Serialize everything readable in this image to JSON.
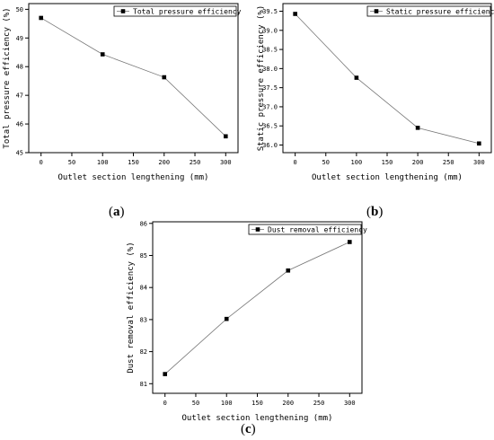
{
  "chart_data": [
    {
      "panel_label": "a",
      "type": "line",
      "x": [
        0,
        100,
        200,
        300
      ],
      "series": [
        {
          "name": "Total pressure efficiency",
          "values": [
            49.7,
            48.43,
            47.63,
            45.57
          ]
        }
      ],
      "xlabel": "Outlet section lengthening (mm)",
      "ylabel": "Total pressure efficiency (%)",
      "xlim": [
        -20,
        320
      ],
      "ylim": [
        45,
        50.2
      ],
      "xticks": [
        0,
        50,
        100,
        150,
        200,
        250,
        300
      ],
      "yticks": [
        45,
        46,
        47,
        48,
        49,
        50
      ],
      "grid": false,
      "legend_position": "top-right",
      "marker": "square"
    },
    {
      "panel_label": "b",
      "type": "line",
      "x": [
        0,
        100,
        200,
        300
      ],
      "series": [
        {
          "name": "Static pressure efficiency",
          "values": [
            39.43,
            37.76,
            36.45,
            36.04
          ]
        }
      ],
      "xlabel": "Outlet section lengthening (mm)",
      "ylabel": "Static pressure efficiency (%)",
      "xlim": [
        -20,
        320
      ],
      "ylim": [
        35.8,
        39.7
      ],
      "xticks": [
        0,
        50,
        100,
        150,
        200,
        250,
        300
      ],
      "yticks": [
        36.0,
        36.5,
        37.0,
        37.5,
        38.0,
        38.5,
        39.0,
        39.5
      ],
      "ytick_decimals": 1,
      "grid": false,
      "legend_position": "top-right",
      "marker": "square"
    },
    {
      "panel_label": "c",
      "type": "line",
      "x": [
        0,
        100,
        200,
        300
      ],
      "series": [
        {
          "name": "Dust removal efficiency",
          "values": [
            81.3,
            83.02,
            84.53,
            85.42
          ]
        }
      ],
      "xlabel": "Outlet section lengthening (mm)",
      "ylabel": "Dust removal efficiency (%)",
      "xlim": [
        -20,
        320
      ],
      "ylim": [
        80.7,
        86.05
      ],
      "xticks": [
        0,
        50,
        100,
        150,
        200,
        250,
        300
      ],
      "yticks": [
        81,
        82,
        83,
        84,
        85,
        86
      ],
      "grid": false,
      "legend_position": "top-right",
      "marker": "square"
    }
  ]
}
